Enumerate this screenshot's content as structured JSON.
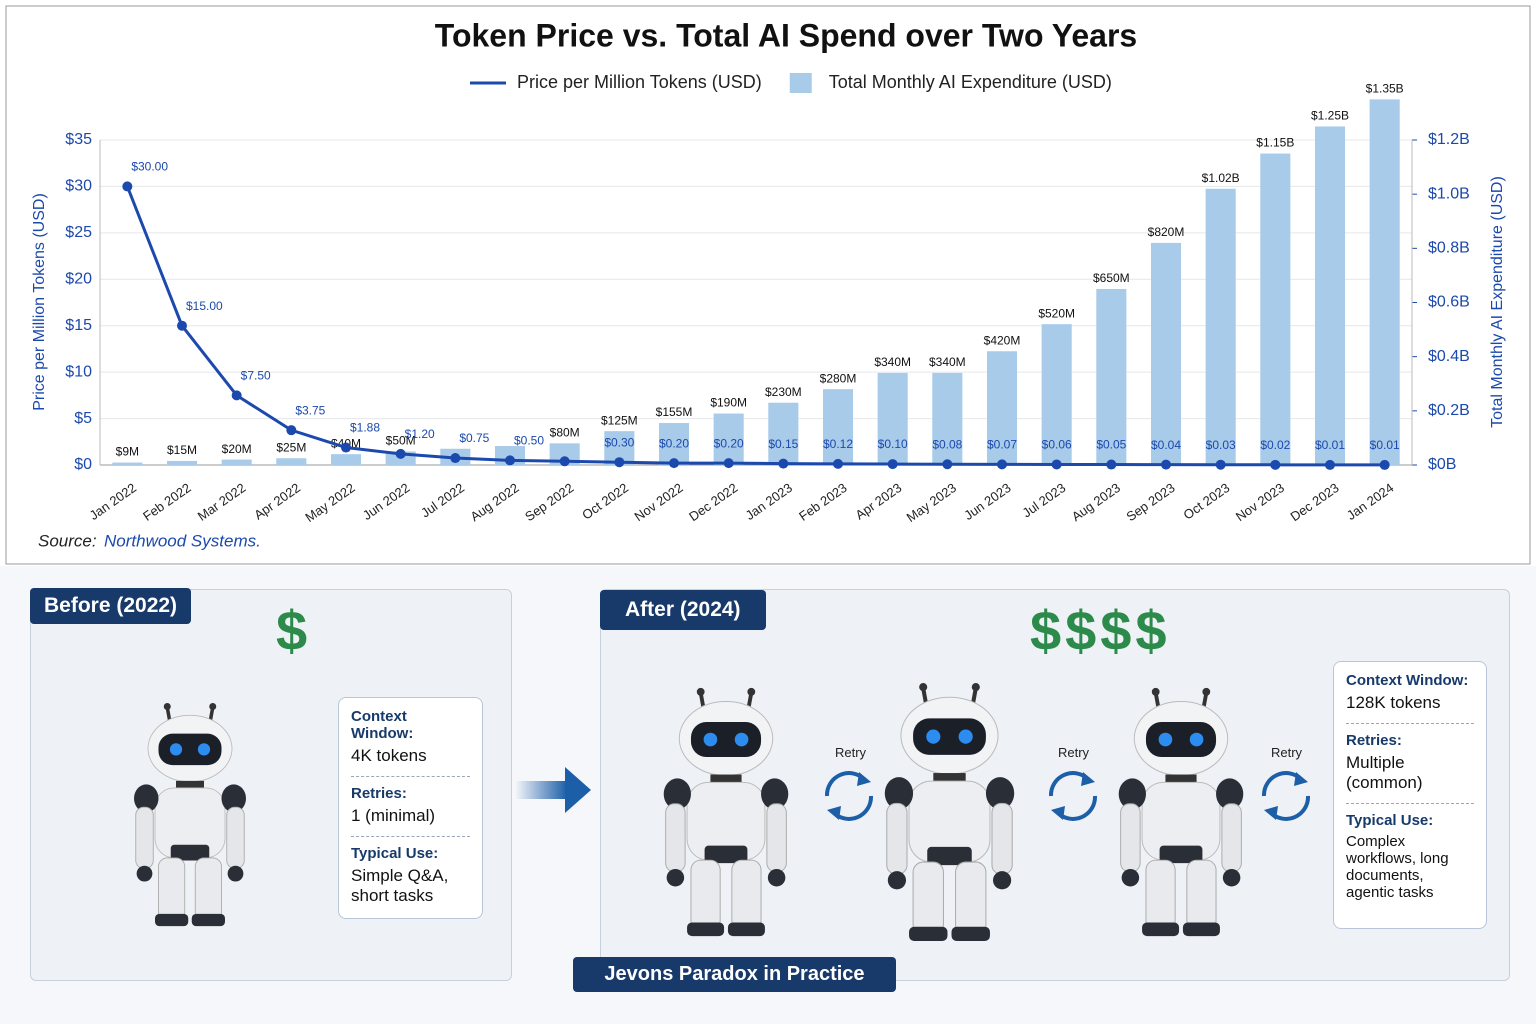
{
  "chart_data": {
    "type": "combo",
    "title": "Token Price vs. Total AI Spend over Two Years",
    "y_label": "Price per Million Tokens (USD)",
    "y2_label": "Total Monthly AI Expenditure (USD)",
    "categories": [
      "Jan 2022",
      "Feb 2022",
      "Mar 2022",
      "Apr 2022",
      "May 2022",
      "Jun 2022",
      "Jul 2022",
      "Aug 2022",
      "Sep 2022",
      "Oct 2022",
      "Nov 2022",
      "Dec 2022",
      "Jan 2023",
      "Feb 2023",
      "Apr 2023",
      "May 2023",
      "Jun 2023",
      "Jul 2023",
      "Aug 2023",
      "Sep 2023",
      "Oct 2023",
      "Nov 2023",
      "Dec 2023",
      "Jan 2024"
    ],
    "series": [
      {
        "name": "Total Monthly AI Expenditure (USD)",
        "type": "bar",
        "axis": "y2",
        "color": "#a9cbea",
        "values": [
          9000000,
          15000000,
          20000000,
          25000000,
          40000000,
          50000000,
          60000000,
          70000000,
          80000000,
          125000000,
          155000000,
          190000000,
          230000000,
          280000000,
          340000000,
          340000000,
          420000000,
          520000000,
          650000000,
          820000000,
          1020000000,
          1150000000,
          1250000000,
          1350000000
        ],
        "value_labels": [
          "$9M",
          "$15M",
          "$20M",
          "$25M",
          "$40M",
          "$50M",
          null,
          null,
          "$80M",
          "$125M",
          "$155M",
          "$190M",
          "$230M",
          "$280M",
          "$340M",
          "$340M",
          "$420M",
          "$520M",
          "$650M",
          "$820M",
          "$1.02B",
          "$1.15B",
          "$1.25B",
          "$1.35B"
        ]
      },
      {
        "name": "Price per Million Tokens (USD)",
        "type": "line",
        "axis": "y",
        "color": "#1c49ad",
        "values": [
          30,
          15,
          7.5,
          3.75,
          1.88,
          1.2,
          0.75,
          0.5,
          0.4,
          0.3,
          0.2,
          0.2,
          0.15,
          0.12,
          0.1,
          0.08,
          0.07,
          0.06,
          0.05,
          0.04,
          0.03,
          0.02,
          0.01,
          0.01
        ],
        "value_labels": [
          "$30.00",
          "$15.00",
          "$7.50",
          "$3.75",
          "$1.88",
          "$1.20",
          "$0.75",
          "$0.50",
          null,
          "$0.30",
          "$0.20",
          "$0.20",
          "$0.15",
          "$0.12",
          "$0.10",
          "$0.08",
          "$0.07",
          "$0.06",
          "$0.05",
          "$0.04",
          "$0.03",
          "$0.02",
          "$0.01",
          "$0.01"
        ]
      }
    ],
    "ylim": [
      0,
      35
    ],
    "yticks": [
      {
        "value": 0,
        "label": "$0"
      },
      {
        "value": 5,
        "label": "$5"
      },
      {
        "value": 10,
        "label": "$10"
      },
      {
        "value": 15,
        "label": "$15"
      },
      {
        "value": 20,
        "label": "$20"
      },
      {
        "value": 25,
        "label": "$25"
      },
      {
        "value": 30,
        "label": "$30"
      },
      {
        "value": 35,
        "label": "$35"
      }
    ],
    "y2lim": [
      0,
      1200000000
    ],
    "y2ticks": [
      {
        "value": 0,
        "label": "$0B"
      },
      {
        "value": 200000000,
        "label": "$0.2B"
      },
      {
        "value": 400000000,
        "label": "$0.4B"
      },
      {
        "value": 600000000,
        "label": "$0.6B"
      },
      {
        "value": 800000000,
        "label": "$0.8B"
      },
      {
        "value": 1000000000,
        "label": "$1.0B"
      },
      {
        "value": 1200000000,
        "label": "$1.2B"
      }
    ],
    "grid": true,
    "legend": "top",
    "source_prefix": "Source:",
    "source": "Northwood Systems."
  },
  "panel": {
    "before": {
      "title": "Before (2022)",
      "icon": "$",
      "info": [
        {
          "label": "Context Window:",
          "value": "4K tokens"
        },
        {
          "label": "Retries:",
          "value": "1 (minimal)"
        },
        {
          "label": "Typical Use:",
          "value": "Simple Q&A, short tasks"
        }
      ]
    },
    "after": {
      "title": "After (2024)",
      "icon": "$$$$",
      "retries": [
        "Retry",
        "Retry",
        "Retry"
      ],
      "info": [
        {
          "label": "Context Window:",
          "value": "128K tokens"
        },
        {
          "label": "Retries:",
          "value": "Multiple (common)"
        },
        {
          "label": "Typical Use:",
          "value": "Complex workflows, long documents, agentic tasks"
        }
      ]
    },
    "footer": "Jevons Paradox in Practice"
  }
}
